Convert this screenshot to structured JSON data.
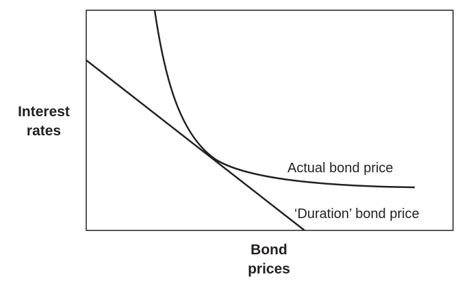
{
  "chart_data": {
    "type": "line",
    "title": "",
    "ylabel_lines": [
      "Interest",
      "rates"
    ],
    "xlabel_lines": [
      "Bond",
      "prices"
    ],
    "grid": false,
    "tick_labels": "none",
    "series": [
      {
        "name": "Actual bond price",
        "shape": "convex curve",
        "color": "#231f20"
      },
      {
        "name": "‘Duration’ bond price",
        "shape": "straight tangent line",
        "color": "#231f20"
      }
    ]
  }
}
